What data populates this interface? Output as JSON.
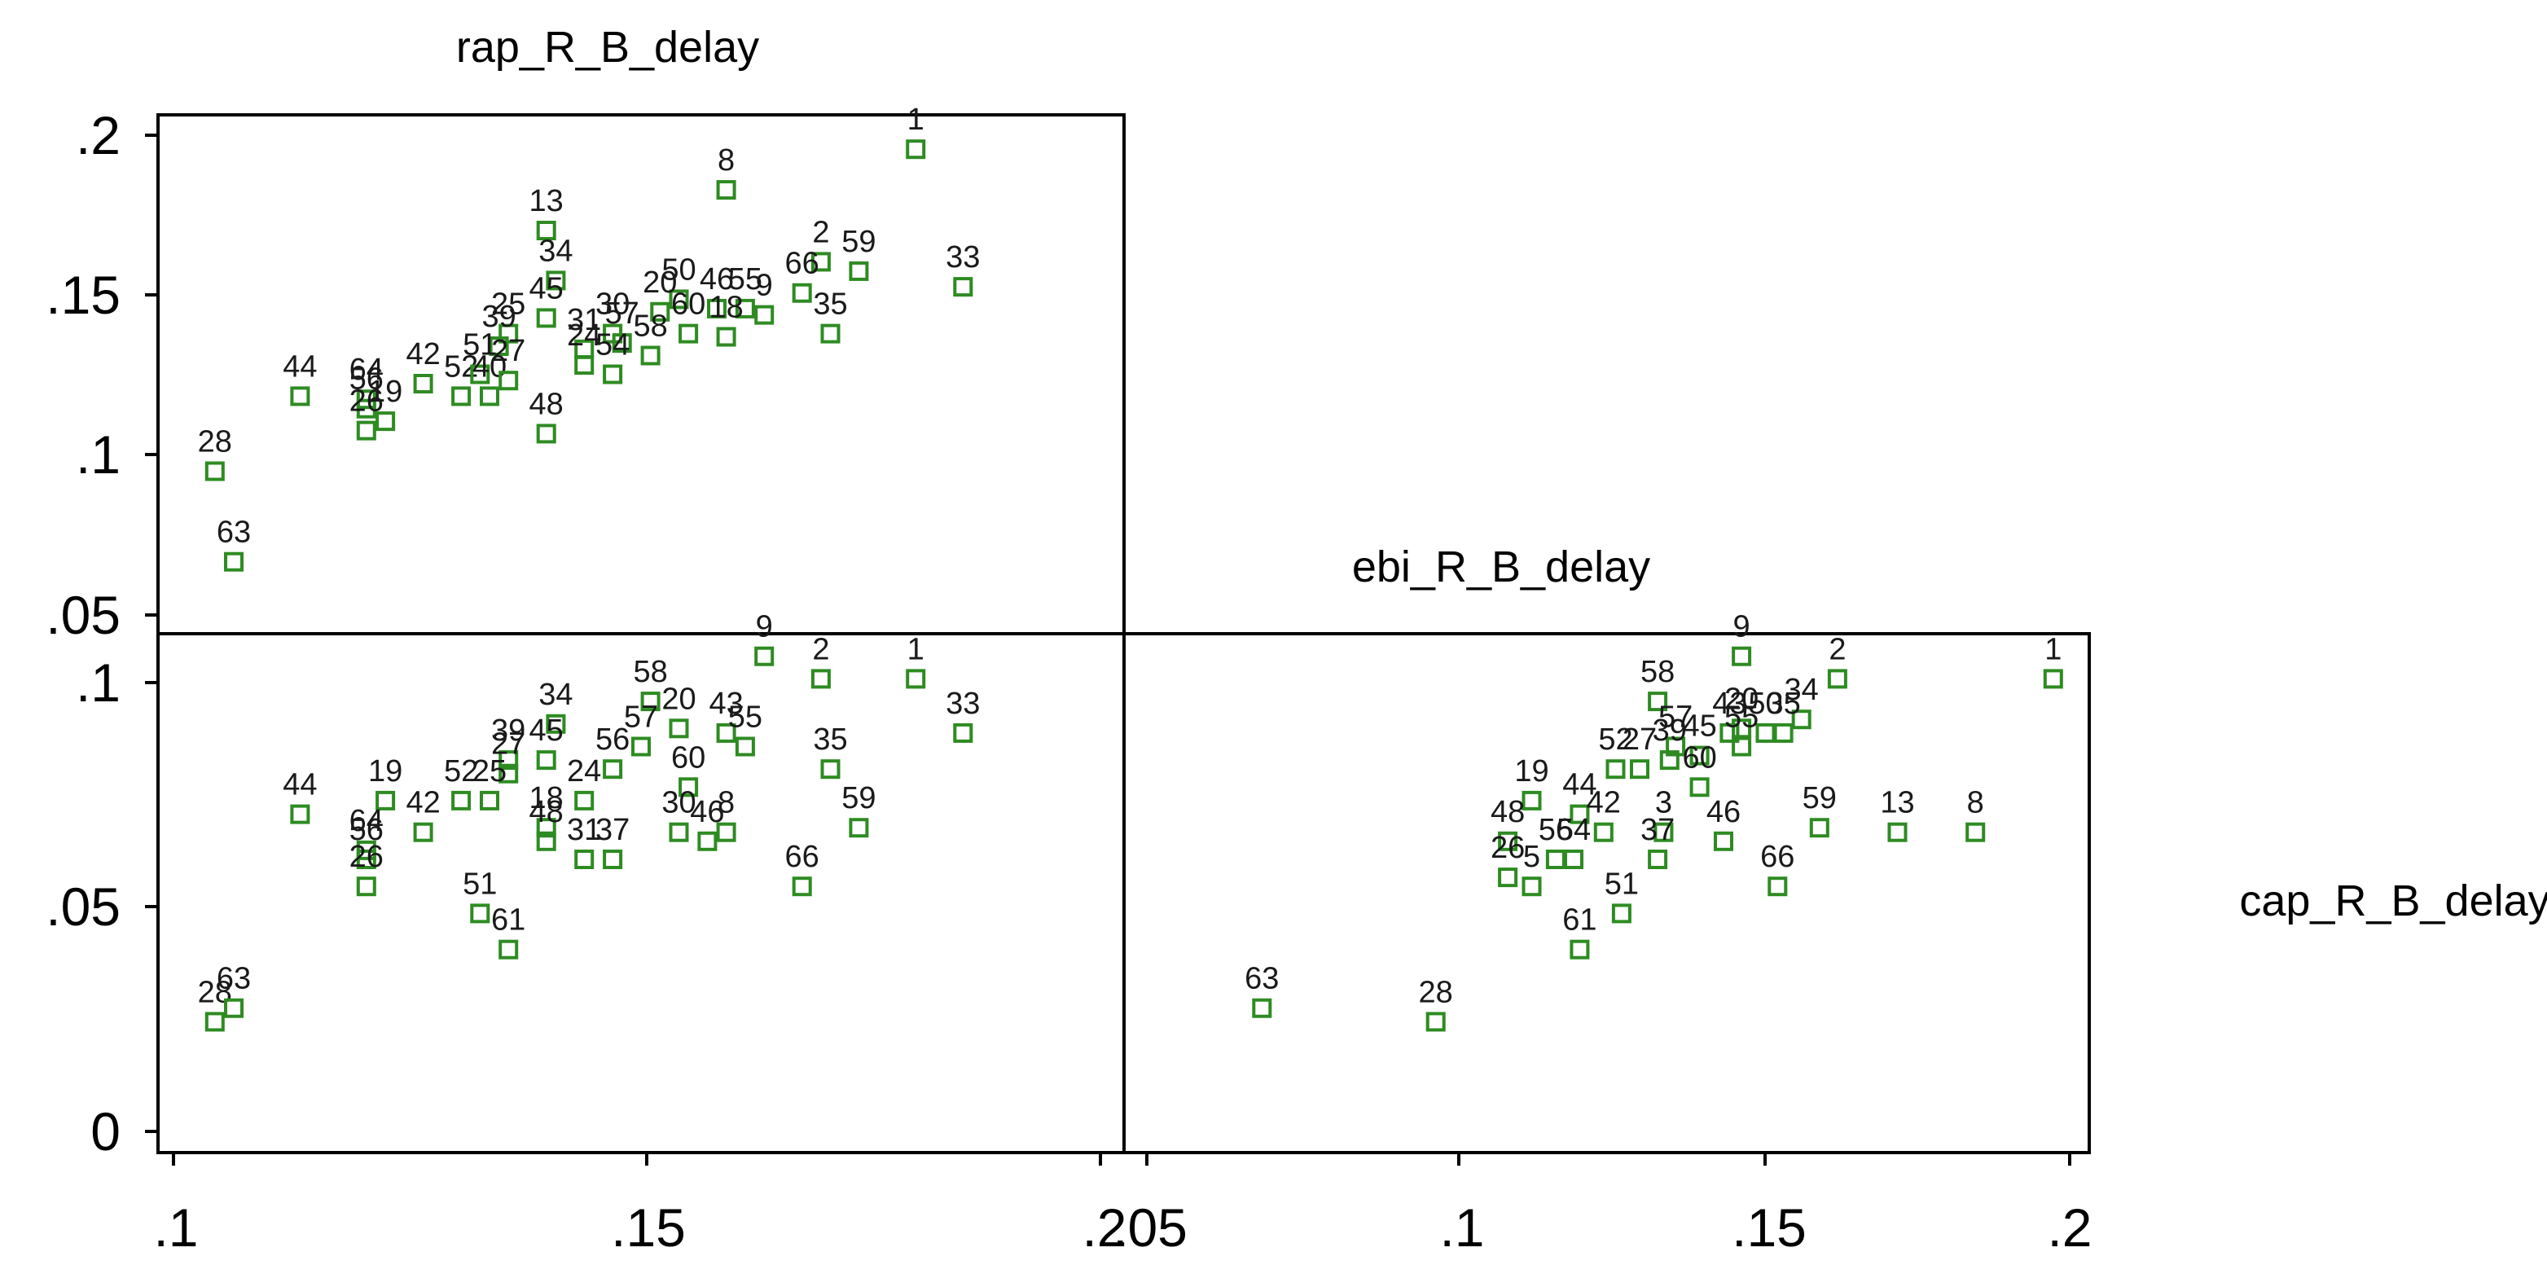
{
  "chart_data": {
    "type": "scatter",
    "layout": "scatter-matrix",
    "variables": [
      "rap_R_B_delay",
      "ebi_R_B_delay",
      "cap_R_B_delay"
    ],
    "marker": {
      "shape": "hollow-square",
      "color": "#2e8b22"
    },
    "axes": {
      "top_left_y": {
        "ticks": [
          ".05",
          ".1",
          ".15",
          ".2"
        ],
        "tick_values": [
          0.05,
          0.1,
          0.15,
          0.2
        ]
      },
      "bottom_y": {
        "ticks": [
          "0",
          ".05",
          ".1"
        ],
        "tick_values": [
          0,
          0.05,
          0.1
        ]
      },
      "bottom_left_x": {
        "ticks": [
          ".1",
          ".15",
          ".2"
        ],
        "tick_values": [
          0.1,
          0.15,
          0.2
        ]
      },
      "bottom_right_x": {
        "ticks": [
          ".05",
          ".1",
          ".15",
          ".2"
        ],
        "tick_values": [
          0.05,
          0.1,
          0.15,
          0.2
        ]
      }
    },
    "panels": [
      {
        "id": "ebi-vs-rap",
        "x_var": "rap_R_B_delay",
        "y_var": "ebi_R_B_delay",
        "xlim": [
          0.098,
          0.2
        ],
        "ylim": [
          0.044,
          0.21
        ],
        "points": [
          {
            "label": "1",
            "x": 0.178,
            "y": 0.199
          },
          {
            "label": "8",
            "x": 0.158,
            "y": 0.186
          },
          {
            "label": "13",
            "x": 0.139,
            "y": 0.173
          },
          {
            "label": "2",
            "x": 0.168,
            "y": 0.163
          },
          {
            "label": "59",
            "x": 0.172,
            "y": 0.16
          },
          {
            "label": "33",
            "x": 0.183,
            "y": 0.155
          },
          {
            "label": "34",
            "x": 0.14,
            "y": 0.157
          },
          {
            "label": "66",
            "x": 0.166,
            "y": 0.153
          },
          {
            "label": "50",
            "x": 0.153,
            "y": 0.151
          },
          {
            "label": "35",
            "x": 0.169,
            "y": 0.14
          },
          {
            "label": "45",
            "x": 0.139,
            "y": 0.145
          },
          {
            "label": "20",
            "x": 0.151,
            "y": 0.147
          },
          {
            "label": "46",
            "x": 0.157,
            "y": 0.148
          },
          {
            "label": "55",
            "x": 0.16,
            "y": 0.148
          },
          {
            "label": "9",
            "x": 0.162,
            "y": 0.146
          },
          {
            "label": "25",
            "x": 0.135,
            "y": 0.14
          },
          {
            "label": "39",
            "x": 0.134,
            "y": 0.136
          },
          {
            "label": "30",
            "x": 0.146,
            "y": 0.14
          },
          {
            "label": "31",
            "x": 0.143,
            "y": 0.135
          },
          {
            "label": "57",
            "x": 0.147,
            "y": 0.137
          },
          {
            "label": "58",
            "x": 0.15,
            "y": 0.133
          },
          {
            "label": "60",
            "x": 0.154,
            "y": 0.14
          },
          {
            "label": "18",
            "x": 0.158,
            "y": 0.139
          },
          {
            "label": "24",
            "x": 0.143,
            "y": 0.13
          },
          {
            "label": "54",
            "x": 0.146,
            "y": 0.127
          },
          {
            "label": "44",
            "x": 0.113,
            "y": 0.12
          },
          {
            "label": "64",
            "x": 0.12,
            "y": 0.119
          },
          {
            "label": "56",
            "x": 0.12,
            "y": 0.116
          },
          {
            "label": "26",
            "x": 0.12,
            "y": 0.109
          },
          {
            "label": "19",
            "x": 0.122,
            "y": 0.112
          },
          {
            "label": "42",
            "x": 0.126,
            "y": 0.124
          },
          {
            "label": "52",
            "x": 0.13,
            "y": 0.12
          },
          {
            "label": "51",
            "x": 0.132,
            "y": 0.127
          },
          {
            "label": "40",
            "x": 0.133,
            "y": 0.12
          },
          {
            "label": "27",
            "x": 0.135,
            "y": 0.125
          },
          {
            "label": "48",
            "x": 0.139,
            "y": 0.108
          },
          {
            "label": "28",
            "x": 0.104,
            "y": 0.096
          },
          {
            "label": "63",
            "x": 0.106,
            "y": 0.067
          }
        ]
      },
      {
        "id": "cap-vs-rap",
        "x_var": "rap_R_B_delay",
        "y_var": "cap_R_B_delay",
        "xlim": [
          0.098,
          0.2
        ],
        "ylim": [
          -0.005,
          0.11
        ],
        "points": [
          {
            "label": "9",
            "x": 0.162,
            "y": 0.105
          },
          {
            "label": "2",
            "x": 0.168,
            "y": 0.1
          },
          {
            "label": "1",
            "x": 0.178,
            "y": 0.1
          },
          {
            "label": "33",
            "x": 0.183,
            "y": 0.088
          },
          {
            "label": "34",
            "x": 0.14,
            "y": 0.09
          },
          {
            "label": "58",
            "x": 0.15,
            "y": 0.095
          },
          {
            "label": "20",
            "x": 0.153,
            "y": 0.089
          },
          {
            "label": "43",
            "x": 0.158,
            "y": 0.088
          },
          {
            "label": "55",
            "x": 0.16,
            "y": 0.085
          },
          {
            "label": "57",
            "x": 0.149,
            "y": 0.085
          },
          {
            "label": "39",
            "x": 0.135,
            "y": 0.082
          },
          {
            "label": "27",
            "x": 0.135,
            "y": 0.079
          },
          {
            "label": "45",
            "x": 0.139,
            "y": 0.082
          },
          {
            "label": "24",
            "x": 0.143,
            "y": 0.073
          },
          {
            "label": "56",
            "x": 0.146,
            "y": 0.08
          },
          {
            "label": "60",
            "x": 0.154,
            "y": 0.076
          },
          {
            "label": "35",
            "x": 0.169,
            "y": 0.08
          },
          {
            "label": "59",
            "x": 0.172,
            "y": 0.067
          },
          {
            "label": "8",
            "x": 0.158,
            "y": 0.066
          },
          {
            "label": "46",
            "x": 0.156,
            "y": 0.064
          },
          {
            "label": "30",
            "x": 0.153,
            "y": 0.066
          },
          {
            "label": "31",
            "x": 0.143,
            "y": 0.06
          },
          {
            "label": "37",
            "x": 0.146,
            "y": 0.06
          },
          {
            "label": "18",
            "x": 0.139,
            "y": 0.067
          },
          {
            "label": "48",
            "x": 0.139,
            "y": 0.064
          },
          {
            "label": "52",
            "x": 0.13,
            "y": 0.073
          },
          {
            "label": "25",
            "x": 0.133,
            "y": 0.073
          },
          {
            "label": "42",
            "x": 0.126,
            "y": 0.066
          },
          {
            "label": "19",
            "x": 0.122,
            "y": 0.073
          },
          {
            "label": "44",
            "x": 0.113,
            "y": 0.07
          },
          {
            "label": "64",
            "x": 0.12,
            "y": 0.062
          },
          {
            "label": "56",
            "x": 0.12,
            "y": 0.06
          },
          {
            "label": "26",
            "x": 0.12,
            "y": 0.054
          },
          {
            "label": "66",
            "x": 0.166,
            "y": 0.054
          },
          {
            "label": "51",
            "x": 0.132,
            "y": 0.048
          },
          {
            "label": "61",
            "x": 0.135,
            "y": 0.04
          },
          {
            "label": "28",
            "x": 0.104,
            "y": 0.024
          },
          {
            "label": "63",
            "x": 0.106,
            "y": 0.027
          }
        ]
      },
      {
        "id": "cap-vs-ebi",
        "x_var": "ebi_R_B_delay",
        "y_var": "cap_R_B_delay",
        "xlim": [
          0.044,
          0.205
        ],
        "ylim": [
          -0.005,
          0.11
        ],
        "points": [
          {
            "label": "1",
            "x": 0.199,
            "y": 0.1
          },
          {
            "label": "2",
            "x": 0.163,
            "y": 0.1
          },
          {
            "label": "9",
            "x": 0.147,
            "y": 0.105
          },
          {
            "label": "34",
            "x": 0.157,
            "y": 0.091
          },
          {
            "label": "35",
            "x": 0.154,
            "y": 0.088
          },
          {
            "label": "50",
            "x": 0.151,
            "y": 0.088
          },
          {
            "label": "20",
            "x": 0.147,
            "y": 0.089
          },
          {
            "label": "43",
            "x": 0.145,
            "y": 0.088
          },
          {
            "label": "58",
            "x": 0.133,
            "y": 0.095
          },
          {
            "label": "57",
            "x": 0.136,
            "y": 0.085
          },
          {
            "label": "39",
            "x": 0.135,
            "y": 0.082
          },
          {
            "label": "27",
            "x": 0.13,
            "y": 0.08
          },
          {
            "label": "52",
            "x": 0.126,
            "y": 0.08
          },
          {
            "label": "45",
            "x": 0.14,
            "y": 0.083
          },
          {
            "label": "60",
            "x": 0.14,
            "y": 0.076
          },
          {
            "label": "55",
            "x": 0.147,
            "y": 0.085
          },
          {
            "label": "59",
            "x": 0.16,
            "y": 0.067
          },
          {
            "label": "13",
            "x": 0.173,
            "y": 0.066
          },
          {
            "label": "8",
            "x": 0.186,
            "y": 0.066
          },
          {
            "label": "46",
            "x": 0.144,
            "y": 0.064
          },
          {
            "label": "66",
            "x": 0.153,
            "y": 0.054
          },
          {
            "label": "3",
            "x": 0.134,
            "y": 0.066
          },
          {
            "label": "37",
            "x": 0.133,
            "y": 0.06
          },
          {
            "label": "19",
            "x": 0.112,
            "y": 0.073
          },
          {
            "label": "44",
            "x": 0.12,
            "y": 0.07
          },
          {
            "label": "42",
            "x": 0.124,
            "y": 0.066
          },
          {
            "label": "48",
            "x": 0.108,
            "y": 0.064
          },
          {
            "label": "26",
            "x": 0.108,
            "y": 0.056
          },
          {
            "label": "56",
            "x": 0.116,
            "y": 0.06
          },
          {
            "label": "54",
            "x": 0.119,
            "y": 0.06
          },
          {
            "label": "5",
            "x": 0.112,
            "y": 0.054
          },
          {
            "label": "51",
            "x": 0.127,
            "y": 0.048
          },
          {
            "label": "61",
            "x": 0.12,
            "y": 0.04
          },
          {
            "label": "63",
            "x": 0.067,
            "y": 0.027
          },
          {
            "label": "28",
            "x": 0.096,
            "y": 0.024
          }
        ]
      }
    ]
  }
}
